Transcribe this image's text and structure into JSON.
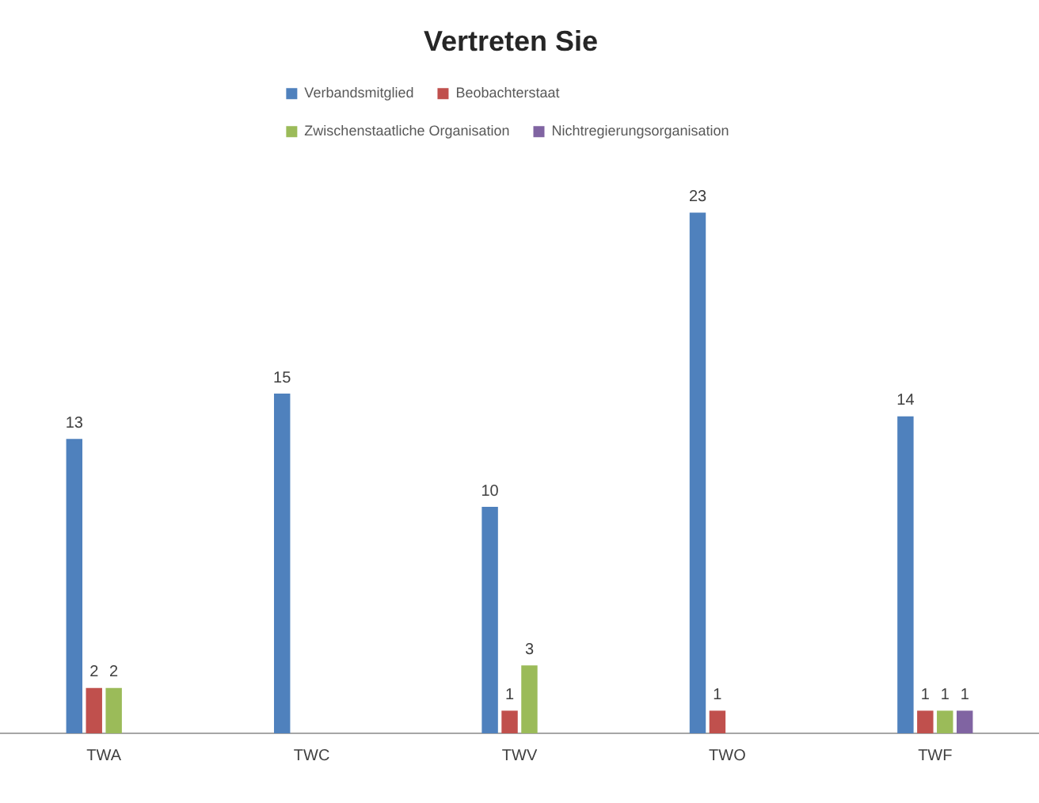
{
  "chart_data": {
    "type": "bar",
    "title": "Vertreten Sie",
    "categories": [
      "TWA",
      "TWC",
      "TWV",
      "TWO",
      "TWF"
    ],
    "series": [
      {
        "name": "Verbandsmitglied",
        "color": "#4f81bd",
        "values": [
          13,
          15,
          10,
          23,
          14
        ]
      },
      {
        "name": "Beobachterstaat",
        "color": "#c0504d",
        "values": [
          2,
          null,
          1,
          1,
          1
        ]
      },
      {
        "name": "Zwischenstaatliche Organisation",
        "color": "#9bbb59",
        "values": [
          2,
          null,
          3,
          null,
          1
        ]
      },
      {
        "name": "Nichtregierungsorganisation",
        "color": "#8064a2",
        "values": [
          null,
          null,
          null,
          null,
          1
        ]
      }
    ],
    "data_labels": true,
    "legend": "top",
    "tick_labels": "x"
  }
}
